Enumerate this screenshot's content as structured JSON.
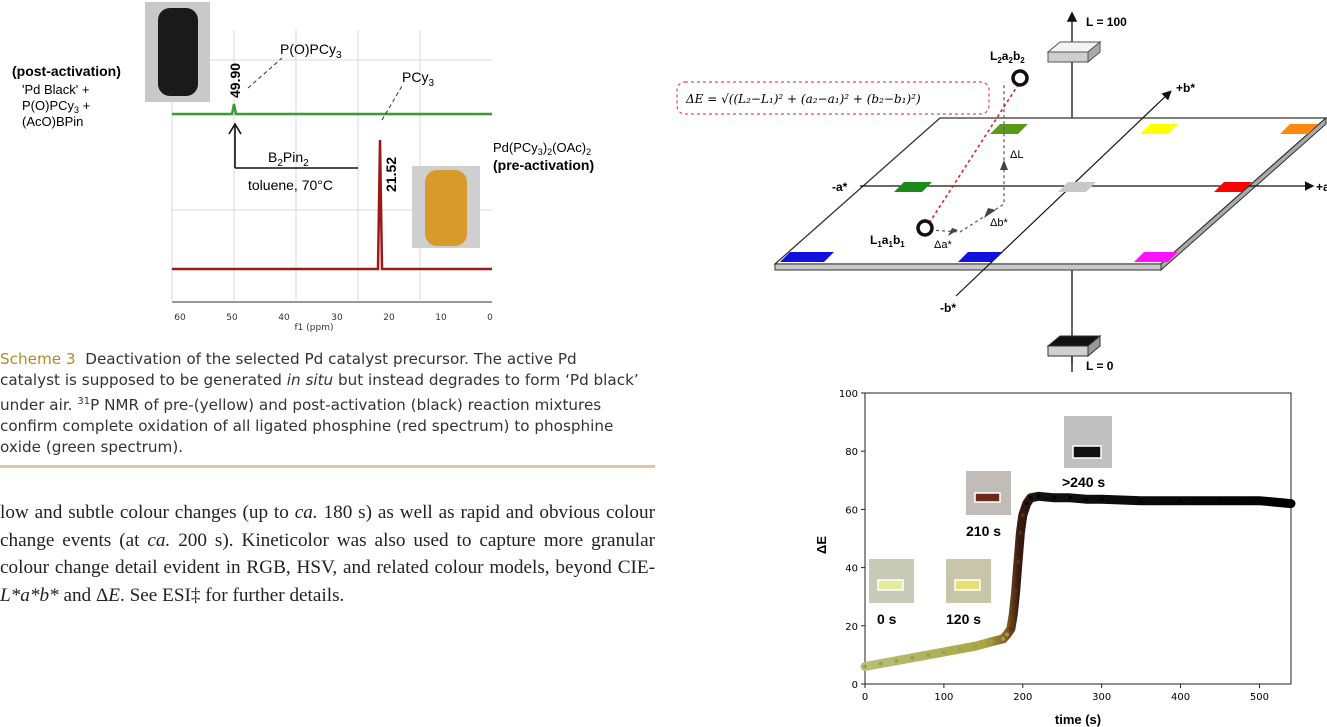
{
  "nmr": {
    "post_label": "(post-activation)",
    "post_desc": [
      "'Pd Black' +",
      "P(O)PCy",
      "(AcO)BPin"
    ],
    "peak_label_1": "49.90",
    "peak_label_2": "21.52",
    "species_top": "P(O)PCy",
    "species_bottom": "PCy",
    "reagent": "B",
    "conditions": "toluene, 70°C",
    "pre_label": "(pre-activation)",
    "pre_desc": "Pd(PCy",
    "axis_ticks": [
      "60",
      "50",
      "40",
      "30",
      "20",
      "10",
      "0"
    ],
    "axis_label": "f1 (ppm)"
  },
  "caption": {
    "label": "Scheme 3",
    "text_1": "Deactivation of the selected Pd catalyst precursor. The active Pd catalyst is supposed to be generated ",
    "in_situ": "in situ",
    "text_2": " but instead degrades to form ‘Pd black’ under air. ",
    "sup31": "31",
    "text_3": "P NMR of pre-(yellow) and post-activation (black) reaction mixtures confirm complete oxidation of all ligated phosphine (red spectrum) to phosphine oxide (green spectrum)."
  },
  "body": {
    "t1": "low and subtle colour changes (up to ",
    "ca1": "ca.",
    "t2": " 180 s) as well as rapid and obvious colour change events (at ",
    "ca2": "ca.",
    "t3": " 200 s). Kineticolor was also used to capture more granular colour change detail evident in RGB, HSV, and related colour models, beyond CIE-",
    "lab": "L*a*b*",
    "t4": " and Δ",
    "E": "E",
    "t5": ". See ESI‡ for further details."
  },
  "cie": {
    "L100": "L = 100",
    "L0": "L = 0",
    "plus_b": "+b*",
    "minus_b": "-b*",
    "minus_a": "-a*",
    "plus_a": "+a*",
    "point2": "L",
    "point1": "L",
    "dL": "ΔL",
    "db": "Δb*",
    "da": "Δa*",
    "formula": "ΔE = √((L₂−L₁)² + (a₂−a₁)² + (b₂−b₁)²)"
  },
  "chart_data": {
    "type": "scatter",
    "xlabel": "time (s)",
    "ylabel": "ΔE",
    "xlim": [
      0,
      540
    ],
    "ylim": [
      0,
      100
    ],
    "x_ticks": [
      0,
      100,
      200,
      300,
      400,
      500
    ],
    "y_ticks": [
      0,
      20,
      40,
      60,
      80,
      100
    ],
    "series": [
      {
        "x": [
          0,
          20,
          40,
          60,
          80,
          100,
          120,
          140,
          160,
          175,
          180,
          185,
          188,
          191,
          194,
          197,
          200,
          205,
          210,
          220,
          240,
          260,
          280,
          300,
          350,
          400,
          450,
          500,
          540
        ],
        "y": [
          6,
          7,
          8,
          9,
          10,
          11,
          12,
          13,
          14.5,
          15.5,
          17,
          19,
          24,
          32,
          42,
          52,
          58,
          62,
          64,
          64.5,
          64,
          64,
          63.5,
          63.5,
          63,
          63,
          63,
          63,
          62
        ]
      }
    ],
    "annotations": [
      "0 s",
      "120 s",
      "210 s",
      ">240 s"
    ]
  }
}
